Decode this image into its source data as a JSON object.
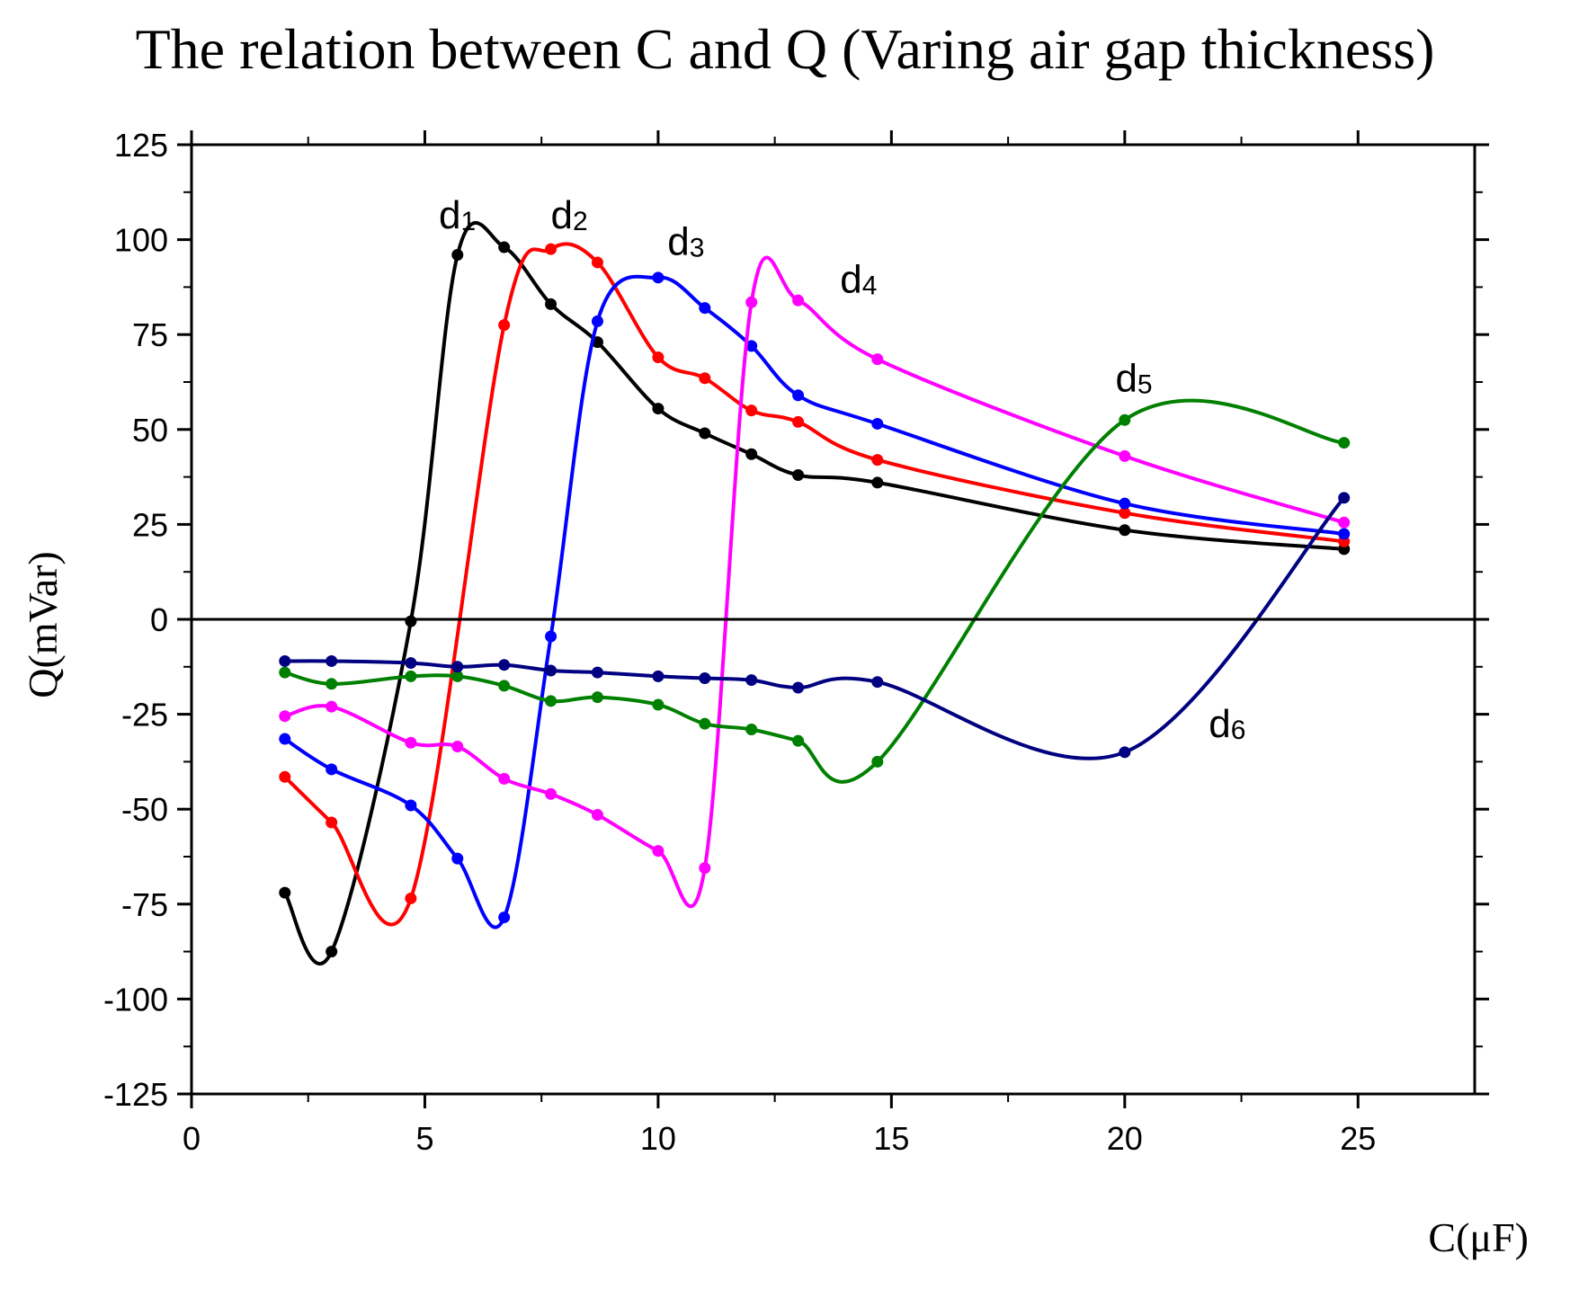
{
  "chart_data": {
    "type": "line",
    "title": "The relation between C and Q (Varing air gap thickness)",
    "xlabel": "C(μF)",
    "ylabel": "Q(mVar)",
    "xlim": [
      0,
      27.5
    ],
    "ylim": [
      -125,
      125
    ],
    "xticks": [
      0,
      5,
      10,
      15,
      20,
      25
    ],
    "yticks": [
      -125,
      -100,
      -75,
      -50,
      -25,
      0,
      25,
      50,
      75,
      100,
      125
    ],
    "zero_line": true,
    "grid": false,
    "series": [
      {
        "name": "d1",
        "label_main": "d",
        "label_sub": "1",
        "color": "#000000",
        "label_at": [
          5.3,
          103
        ],
        "x": [
          2,
          3,
          4.7,
          5.7,
          6.7,
          7.7,
          8.7,
          10,
          11,
          12,
          13,
          14.7,
          20,
          24.7
        ],
        "y": [
          -72,
          -87.5,
          -0.5,
          96,
          98,
          83,
          73,
          55.5,
          49,
          43.5,
          38,
          36,
          23.5,
          18.5
        ]
      },
      {
        "name": "d2",
        "label_main": "d",
        "label_sub": "2",
        "color": "#ff0000",
        "label_at": [
          7.7,
          103
        ],
        "x": [
          2,
          3,
          4.7,
          6.7,
          7.7,
          8.7,
          10,
          11,
          12,
          13,
          14.7,
          20,
          24.7
        ],
        "y": [
          -41.5,
          -53.5,
          -73.5,
          77.5,
          97.5,
          94,
          69,
          63.5,
          55,
          52,
          42,
          28,
          20.5
        ]
      },
      {
        "name": "d3",
        "label_main": "d",
        "label_sub": "3",
        "color": "#0000ff",
        "label_at": [
          10.2,
          96
        ],
        "x": [
          2,
          3,
          4.7,
          5.7,
          6.7,
          7.7,
          8.7,
          10,
          11,
          12,
          13,
          14.7,
          20,
          24.7
        ],
        "y": [
          -31.5,
          -39.5,
          -49,
          -63,
          -78.5,
          -4.5,
          78.5,
          90,
          82,
          72,
          59,
          51.5,
          30.5,
          22.5
        ]
      },
      {
        "name": "d4",
        "label_main": "d",
        "label_sub": "4",
        "color": "#ff00ff",
        "label_at": [
          13.9,
          86
        ],
        "x": [
          2,
          3,
          4.7,
          5.7,
          6.7,
          7.7,
          8.7,
          10,
          11,
          12,
          13,
          14.7,
          20,
          24.7
        ],
        "y": [
          -25.5,
          -23,
          -32.5,
          -33.5,
          -42,
          -46,
          -51.5,
          -61,
          -65.5,
          83.5,
          84,
          68.5,
          43,
          25.5
        ]
      },
      {
        "name": "d5",
        "label_main": "d",
        "label_sub": "5",
        "color": "#008000",
        "label_at": [
          19.8,
          60
        ],
        "x": [
          2,
          3,
          4.7,
          5.7,
          6.7,
          7.7,
          8.7,
          10,
          11,
          12,
          13,
          14.7,
          20,
          24.7
        ],
        "y": [
          -14,
          -17,
          -15,
          -15,
          -17.5,
          -21.5,
          -20.5,
          -22.5,
          -27.5,
          -29,
          -32,
          -37.5,
          52.5,
          46.5
        ]
      },
      {
        "name": "d6",
        "label_main": "d",
        "label_sub": "6",
        "color": "#000080",
        "label_at": [
          21.8,
          -31
        ],
        "x": [
          2,
          3,
          4.7,
          5.7,
          6.7,
          7.7,
          8.7,
          10,
          11,
          12,
          13,
          14.7,
          20,
          24.7
        ],
        "y": [
          -11,
          -11,
          -11.5,
          -12.5,
          -12,
          -13.5,
          -14,
          -15,
          -15.5,
          -16,
          -18,
          -16.5,
          -35,
          32
        ]
      }
    ]
  }
}
